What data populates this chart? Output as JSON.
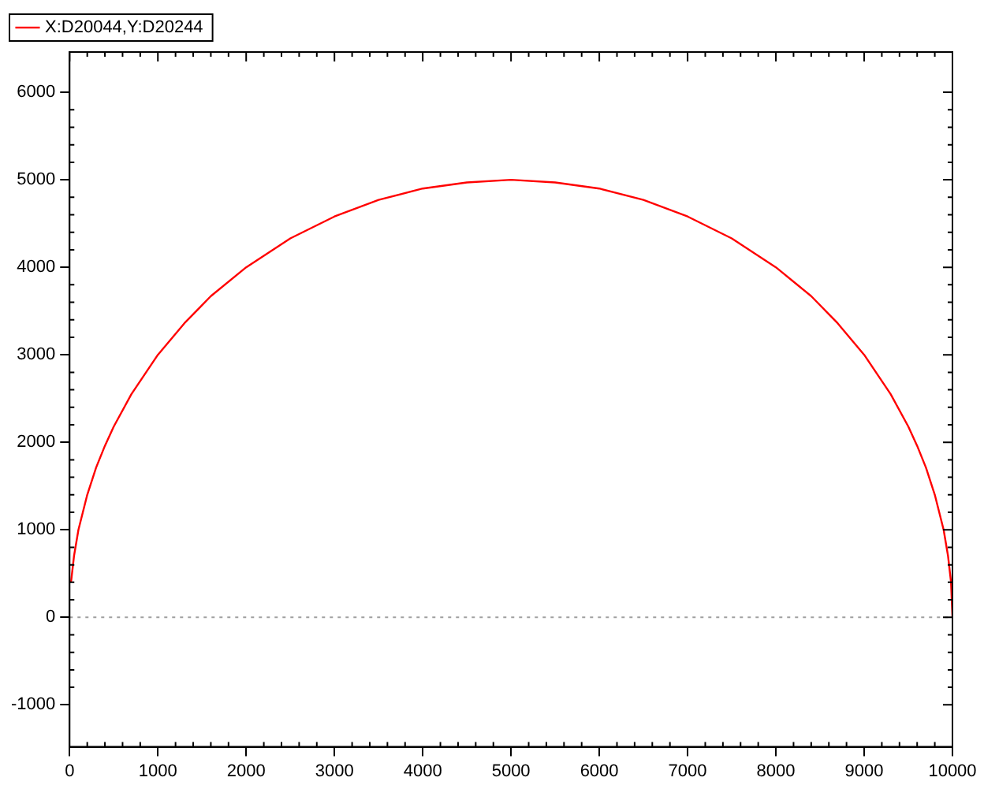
{
  "chart_data": {
    "type": "line",
    "x": [
      16,
      50,
      100,
      200,
      300,
      400,
      500,
      700,
      1000,
      1300,
      1600,
      2000,
      2500,
      3000,
      3500,
      4000,
      4500,
      5000,
      5500,
      6000,
      6500,
      7000,
      7500,
      8000,
      8400,
      8700,
      9000,
      9300,
      9500,
      9600,
      9700,
      9800,
      9900,
      9950,
      9984,
      10000
    ],
    "series": [
      {
        "name": "X:D20044,Y:D20244",
        "color": "#ff0000",
        "values": [
          400,
          700,
          1000,
          1400,
          1710,
          1960,
          2180,
          2550,
          3000,
          3360,
          3670,
          4000,
          4330,
          4580,
          4770,
          4900,
          4970,
          5000,
          4970,
          4900,
          4770,
          4580,
          4330,
          4000,
          3670,
          3360,
          3000,
          2550,
          2180,
          1960,
          1710,
          1400,
          1000,
          700,
          400,
          0
        ]
      }
    ],
    "xlim": [
      0,
      10000
    ],
    "xticks": [
      0,
      1000,
      2000,
      3000,
      4000,
      5000,
      6000,
      7000,
      8000,
      9000,
      10000
    ],
    "ylim": [
      -1480,
      6460
    ],
    "yticks": [
      -1000,
      0,
      1000,
      2000,
      3000,
      4000,
      5000,
      6000
    ],
    "ref_lines": [
      {
        "axis": "y",
        "value": 0,
        "color": "#a0a0a0",
        "line_style": "dotted"
      }
    ],
    "grid": false,
    "legend": "top left",
    "marker": "none",
    "line_style": "solid"
  }
}
